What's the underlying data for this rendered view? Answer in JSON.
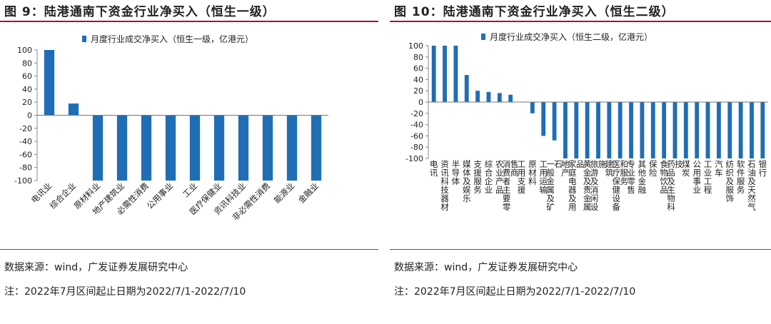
{
  "chart_data": [
    {
      "type": "bar",
      "title": "图 9：陆港通南下资金行业净买入（恒生一级）",
      "legend": "月度行业成交净买入（恒生一级，亿港元）",
      "color": "#1f6eb5",
      "ylim": [
        -100,
        100
      ],
      "yticks": [
        100,
        80,
        60,
        40,
        20,
        0,
        -20,
        -40,
        -60,
        -80,
        -100
      ],
      "categories": [
        "电讯业",
        "综合企业",
        "原材料业",
        "地产建筑业",
        "必需性消费",
        "公用事业",
        "工业",
        "医疗保健业",
        "资讯科技业",
        "非必需性消费",
        "能源业",
        "金融业"
      ],
      "values": [
        100,
        18,
        -100,
        -100,
        -100,
        -100,
        -100,
        -100,
        -100,
        -100,
        -100,
        -100
      ],
      "source": "数据来源：wind，广发证券发展研究中心",
      "note": "注：2022年7月区间起止日期为2022/7/1-2022/7/10"
    },
    {
      "type": "bar",
      "title": "图 10：陆港通南下资金行业净买入（恒生二级）",
      "legend": "月度行业成交净买入（恒生二级，亿港元）",
      "color": "#1f6eb5",
      "ylim": [
        -100,
        100
      ],
      "yticks": [
        100,
        80,
        60,
        40,
        20,
        0,
        -20,
        -40,
        -60,
        -80,
        -100
      ],
      "categories": [
        "电讯",
        "资讯科技器材",
        "半导体",
        "媒体及娱乐",
        "支援服务",
        "综合企业",
        "农业产品",
        "消费者主要零售商",
        "工用支援",
        "原材料",
        "工用运输",
        "一般金属及矿石",
        "地产",
        "家庭电器及用品",
        "黄金及贵金属",
        "旅游及消闲设施",
        "建筑",
        "医疗保健设备和服务",
        "专业零售",
        "其他金融",
        "保险",
        "食物饮品",
        "药品及生物科技",
        "煤炭",
        "公用事业",
        "工业工程",
        "汽车",
        "纺织及服饰",
        "软件服务",
        "石油及天然气",
        "银行"
      ],
      "values": [
        100,
        100,
        100,
        48,
        20,
        18,
        16,
        13,
        0,
        -20,
        -60,
        -68,
        -100,
        -100,
        -100,
        -100,
        -100,
        -100,
        -100,
        -100,
        -100,
        -100,
        -100,
        -100,
        -100,
        -100,
        -100,
        -100,
        -100,
        -100,
        -100
      ],
      "source": "数据来源：wind，广发证券发展研究中心",
      "note": "注：2022年7月区间起止日期为2022/7/1-2022/7/10"
    }
  ]
}
